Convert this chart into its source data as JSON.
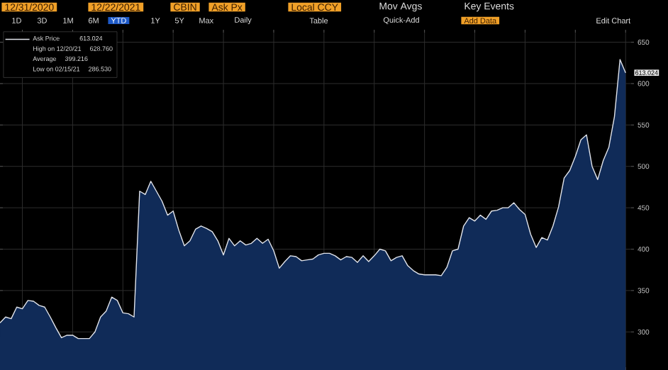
{
  "chart_data": {
    "type": "area",
    "categories": [
      null,
      null,
      null,
      null,
      null,
      null,
      null,
      null,
      null,
      null,
      null,
      null,
      null,
      null,
      null,
      null,
      null,
      null,
      null,
      null,
      null,
      null,
      null,
      null,
      null,
      null,
      null,
      null,
      null,
      null,
      null,
      null,
      null,
      null,
      null,
      null,
      null,
      null,
      null,
      null,
      null,
      null,
      null,
      null,
      null,
      null,
      null,
      null,
      null,
      null,
      null,
      null,
      null,
      null,
      null,
      null,
      null,
      null,
      null,
      null,
      null,
      null,
      null,
      null,
      null,
      null,
      null,
      null,
      null,
      null,
      null,
      null,
      null,
      null,
      null,
      null,
      null,
      null,
      null,
      null,
      null,
      null,
      null,
      null,
      null,
      null,
      null,
      null,
      null,
      null,
      null,
      null,
      null,
      null,
      null,
      null,
      null,
      null,
      null,
      null,
      null,
      null,
      null,
      null,
      null,
      null,
      null,
      null,
      null,
      null,
      null,
      null,
      null
    ],
    "series": [
      {
        "name": "Ask Price",
        "color": "#102b58",
        "values": [
          311,
          318,
          316,
          330,
          328,
          338,
          337,
          332,
          330,
          318,
          305,
          293,
          296,
          296,
          292,
          292,
          292,
          300,
          318,
          325,
          342,
          338,
          323,
          322,
          318,
          470,
          466,
          482,
          470,
          458,
          441,
          446,
          423,
          404,
          410,
          424,
          428,
          425,
          421,
          410,
          393,
          413,
          404,
          410,
          405,
          407,
          413,
          407,
          412,
          398,
          377,
          385,
          392,
          391,
          386,
          387,
          388,
          393,
          395,
          395,
          392,
          387,
          391,
          390,
          384,
          392,
          385,
          392,
          400,
          398,
          386,
          390,
          392,
          380,
          374,
          370,
          369,
          369,
          369,
          368,
          378,
          398,
          400,
          428,
          438,
          434,
          441,
          436,
          446,
          447,
          450,
          450,
          456,
          448,
          442,
          418,
          402,
          414,
          411,
          428,
          451,
          486,
          495,
          512,
          532,
          538,
          500,
          484,
          507,
          523,
          560,
          629,
          613.024
        ],
        "value_labels": [
          null,
          null,
          null,
          null,
          null,
          null,
          null,
          null,
          null,
          null,
          null,
          null,
          null,
          null,
          null,
          null,
          null,
          null,
          null,
          null,
          null,
          null,
          null,
          null,
          null,
          null,
          null,
          null,
          null,
          null,
          null,
          null,
          null,
          null,
          null,
          null,
          null,
          null,
          null,
          null,
          null,
          null,
          null,
          null,
          null,
          null,
          null,
          null,
          null,
          null,
          null,
          null,
          null,
          null,
          null,
          null,
          null,
          null,
          null,
          null,
          null,
          null,
          null,
          null,
          null,
          null,
          null,
          null,
          null,
          null,
          null,
          null,
          null,
          null,
          null,
          null,
          null,
          null,
          null,
          null,
          null,
          null,
          null,
          null,
          null,
          null,
          null,
          null,
          null,
          null,
          null,
          null,
          null,
          null,
          null,
          null,
          null,
          null,
          null,
          null,
          null,
          null,
          null,
          null,
          null,
          null,
          null,
          null,
          null,
          null,
          null,
          null,
          "613.024"
        ]
      }
    ],
    "ylim": [
      254,
      665
    ],
    "yticks": [
      300,
      350,
      400,
      450,
      500,
      550,
      600,
      650
    ],
    "grid": true,
    "legend": "top left",
    "annotations": [
      "12/31/2020",
      "12/22/2021",
      "CBIN",
      "Ask Px",
      "Local CCY",
      "Mov Avgs",
      "Key Events",
      "1D",
      "3D",
      "1M",
      "6M",
      "YTD",
      "1Y",
      "5Y",
      "Max",
      "Daily",
      "Table",
      "Quick-Add",
      "Add Data",
      "Edit Chart",
      "High on 12/20/21",
      "628.760",
      "Average",
      "399.216",
      "Low on 02/15/21",
      "286.530"
    ]
  }
}
